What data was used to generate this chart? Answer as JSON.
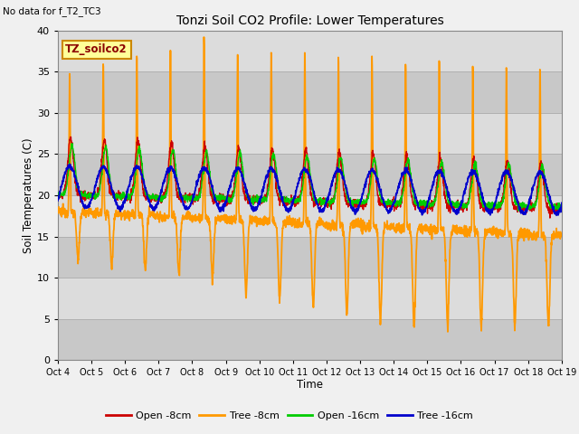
{
  "title": "Tonzi Soil CO2 Profile: Lower Temperatures",
  "ylabel": "Soil Temperatures (C)",
  "xlabel": "Time",
  "no_data_text": "No data for f_T2_TC3",
  "legend_box_text": "TZ_soilco2",
  "ylim": [
    0,
    40
  ],
  "plot_bg": "#dcdcdc",
  "fig_bg": "#f0f0f0",
  "series": {
    "open_8cm": {
      "label": "Open -8cm",
      "color": "#cc0000"
    },
    "tree_8cm": {
      "label": "Tree -8cm",
      "color": "#ff9900"
    },
    "open_16cm": {
      "label": "Open -16cm",
      "color": "#00cc00"
    },
    "tree_16cm": {
      "label": "Tree -16cm",
      "color": "#0000cc"
    }
  },
  "xtick_labels": [
    "Oct 4",
    "Oct 5",
    "Oct 6",
    "Oct 7",
    "Oct 8",
    "Oct 9",
    "Oct 10",
    "Oct 11",
    "Oct 12",
    "Oct 13",
    "Oct 14",
    "Oct 15",
    "Oct 16",
    "Oct 17",
    "Oct 18",
    "Oct 19"
  ],
  "ytick_values": [
    0,
    5,
    10,
    15,
    20,
    25,
    30,
    35,
    40
  ]
}
